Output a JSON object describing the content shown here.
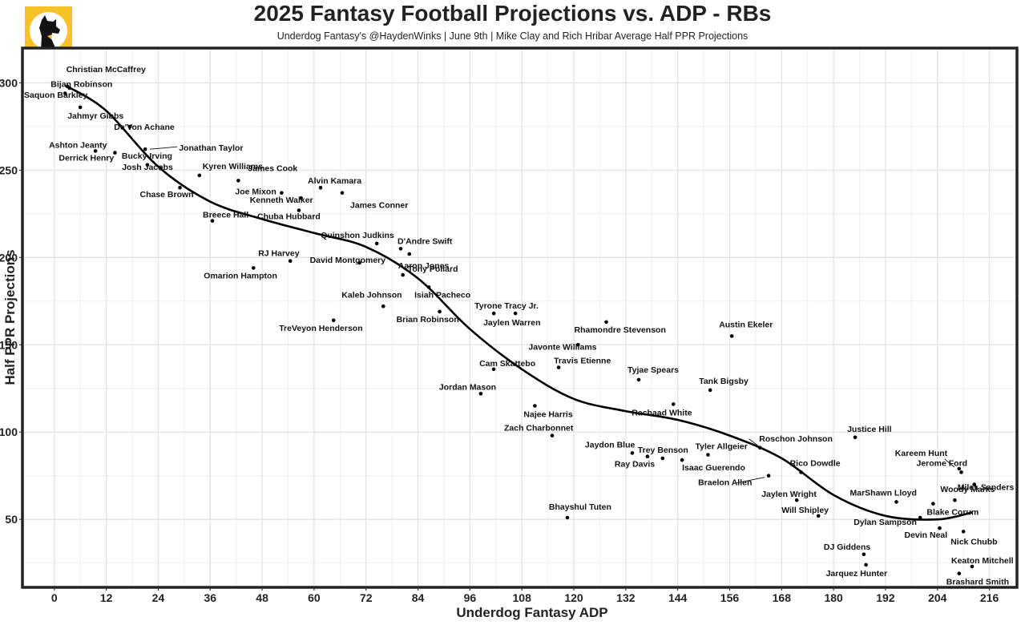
{
  "chart_data": {
    "type": "scatter",
    "title": "2025 Fantasy Football Projections vs. ADP - RBs",
    "subtitle": "Underdog Fantasy's @HaydenWinks | June 9th | Mike Clay and Rich Hribar Average Half PPR Projections",
    "xlabel": "Underdog Fantasy ADP",
    "ylabel": "Half PPR Projections",
    "xlim": [
      -7,
      222
    ],
    "ylim": [
      12,
      319
    ],
    "xticks": [
      0,
      12,
      24,
      36,
      48,
      60,
      72,
      84,
      96,
      108,
      120,
      132,
      144,
      156,
      168,
      180,
      192,
      204,
      216
    ],
    "yticks": [
      50,
      100,
      150,
      200,
      250,
      300
    ],
    "points": [
      {
        "name": "Christian McCaffrey",
        "x": 3.5,
        "y": 297
      },
      {
        "name": "Bijan Robinson",
        "x": 2.5,
        "y": 294
      },
      {
        "name": "Saquon Barkley",
        "x": 3,
        "y": 298
      },
      {
        "name": "Jahmyr Gibbs",
        "x": 6,
        "y": 286
      },
      {
        "name": "De'Von Achane",
        "x": 17.5,
        "y": 275
      },
      {
        "name": "Jonathan Taylor",
        "x": 21,
        "y": 262
      },
      {
        "name": "Ashton Jeanty",
        "x": 9.5,
        "y": 261
      },
      {
        "name": "Derrick Henry",
        "x": 14,
        "y": 260
      },
      {
        "name": "Bucky Irving",
        "x": 21.5,
        "y": 253
      },
      {
        "name": "Kyren Williams",
        "x": 33.5,
        "y": 247
      },
      {
        "name": "Josh Jacobs",
        "x": 24.5,
        "y": 251
      },
      {
        "name": "James Cook",
        "x": 42.5,
        "y": 244
      },
      {
        "name": "Alvin Kamara",
        "x": 61.5,
        "y": 240
      },
      {
        "name": "Joe Mixon",
        "x": 52.5,
        "y": 237
      },
      {
        "name": "James Conner",
        "x": 66.5,
        "y": 237
      },
      {
        "name": "Chase Brown",
        "x": 29,
        "y": 240
      },
      {
        "name": "Kenneth Walker",
        "x": 57,
        "y": 234
      },
      {
        "name": "Chuba Hubbard",
        "x": 56.5,
        "y": 227
      },
      {
        "name": "Breece Hall",
        "x": 36.5,
        "y": 221
      },
      {
        "name": "Quinshon Judkins",
        "x": 74.5,
        "y": 208
      },
      {
        "name": "D'Andre Swift",
        "x": 80,
        "y": 205
      },
      {
        "name": "Aaron Jones",
        "x": 82,
        "y": 202
      },
      {
        "name": "RJ Harvey",
        "x": 54.5,
        "y": 198
      },
      {
        "name": "David Montgomery",
        "x": 70.5,
        "y": 197
      },
      {
        "name": "Omarion Hampton",
        "x": 46,
        "y": 194
      },
      {
        "name": "Tony Pollard",
        "x": 80.5,
        "y": 190
      },
      {
        "name": "Isiah Pacheco",
        "x": 86.5,
        "y": 183
      },
      {
        "name": "Kaleb Johnson",
        "x": 76,
        "y": 172
      },
      {
        "name": "Brian Robinson",
        "x": 89,
        "y": 169
      },
      {
        "name": "Tyrone Tracy Jr.",
        "x": 101.5,
        "y": 168
      },
      {
        "name": "Jaylen Warren",
        "x": 106.5,
        "y": 168
      },
      {
        "name": "TreVeyon Henderson",
        "x": 64.5,
        "y": 164
      },
      {
        "name": "Rhamondre Stevenson",
        "x": 127.5,
        "y": 163
      },
      {
        "name": "Austin Ekeler",
        "x": 156.5,
        "y": 155
      },
      {
        "name": "Javonte Williams",
        "x": 121,
        "y": 150
      },
      {
        "name": "Cam Skattebo",
        "x": 101.5,
        "y": 136
      },
      {
        "name": "Travis Etienne",
        "x": 116.5,
        "y": 137
      },
      {
        "name": "Tyjae Spears",
        "x": 135,
        "y": 130
      },
      {
        "name": "Tank Bigsby",
        "x": 151.5,
        "y": 124
      },
      {
        "name": "Jordan Mason",
        "x": 98.5,
        "y": 122
      },
      {
        "name": "Rachaad White",
        "x": 143,
        "y": 116
      },
      {
        "name": "Najee Harris",
        "x": 111,
        "y": 115
      },
      {
        "name": "Zach Charbonnet",
        "x": 115,
        "y": 98
      },
      {
        "name": "Justice Hill",
        "x": 185,
        "y": 97
      },
      {
        "name": "Roschon Johnson",
        "x": 163,
        "y": 91
      },
      {
        "name": "Jaydon Blue",
        "x": 133.5,
        "y": 88
      },
      {
        "name": "Trey Benson",
        "x": 140.5,
        "y": 85
      },
      {
        "name": "Tyler Allgeier",
        "x": 151,
        "y": 87
      },
      {
        "name": "Ray Davis",
        "x": 137,
        "y": 86
      },
      {
        "name": "Isaac Guerendo",
        "x": 145,
        "y": 84
      },
      {
        "name": "Kareem Hunt",
        "x": 209,
        "y": 79
      },
      {
        "name": "Jerome Ford",
        "x": 209.5,
        "y": 77
      },
      {
        "name": "Rico Dowdle",
        "x": 172.5,
        "y": 77
      },
      {
        "name": "Braelon Allen",
        "x": 165,
        "y": 75
      },
      {
        "name": "Miles Sanders",
        "x": 212.5,
        "y": 70
      },
      {
        "name": "Woody Marks",
        "x": 208,
        "y": 61
      },
      {
        "name": "Jaylen Wright",
        "x": 171.5,
        "y": 61
      },
      {
        "name": "MarShawn Lloyd",
        "x": 194.5,
        "y": 60
      },
      {
        "name": "Blake Corum",
        "x": 203,
        "y": 59
      },
      {
        "name": "Will Shipley",
        "x": 176.5,
        "y": 52
      },
      {
        "name": "Dylan Sampson",
        "x": 200,
        "y": 51
      },
      {
        "name": "Bhayshul Tuten",
        "x": 118.5,
        "y": 51
      },
      {
        "name": "Devin Neal",
        "x": 204.5,
        "y": 45
      },
      {
        "name": "Nick Chubb",
        "x": 210,
        "y": 43
      },
      {
        "name": "DJ Giddens",
        "x": 187,
        "y": 30
      },
      {
        "name": "Keaton Mitchell",
        "x": 212,
        "y": 23
      },
      {
        "name": "Jarquez Hunter",
        "x": 187.5,
        "y": 24
      },
      {
        "name": "Brashard Smith",
        "x": 209,
        "y": 19
      }
    ],
    "trend": [
      {
        "x": 3,
        "y": 298
      },
      {
        "x": 12,
        "y": 284
      },
      {
        "x": 24,
        "y": 252
      },
      {
        "x": 36,
        "y": 232
      },
      {
        "x": 48,
        "y": 222
      },
      {
        "x": 60,
        "y": 214
      },
      {
        "x": 72,
        "y": 206
      },
      {
        "x": 84,
        "y": 188
      },
      {
        "x": 96,
        "y": 159
      },
      {
        "x": 108,
        "y": 136
      },
      {
        "x": 120,
        "y": 119
      },
      {
        "x": 132,
        "y": 112
      },
      {
        "x": 144,
        "y": 107
      },
      {
        "x": 156,
        "y": 98
      },
      {
        "x": 168,
        "y": 85
      },
      {
        "x": 180,
        "y": 64
      },
      {
        "x": 192,
        "y": 52
      },
      {
        "x": 204,
        "y": 50
      },
      {
        "x": 212,
        "y": 54
      }
    ]
  }
}
